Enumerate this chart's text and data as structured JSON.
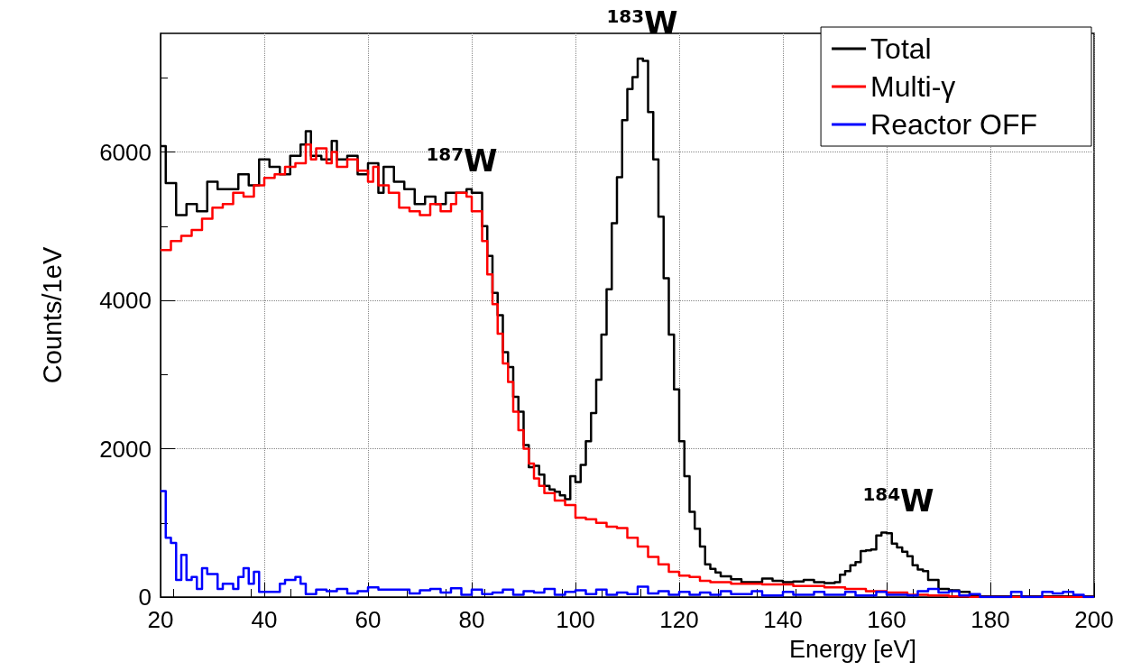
{
  "chart_data": {
    "type": "step",
    "xlabel": "Energy [eV]",
    "ylabel": "Counts/1eV",
    "xlim": [
      20,
      200
    ],
    "xticks": [
      20,
      40,
      60,
      80,
      100,
      120,
      140,
      160,
      180,
      200
    ],
    "ylim": [
      0,
      7600
    ],
    "yticks": [
      0,
      2000,
      4000,
      6000
    ],
    "grid": true,
    "legend": "top right",
    "marker": "none",
    "line_style": "solid",
    "annotations": [
      "$^{183}$W",
      "$^{187}$W",
      "$^{184}$W"
    ],
    "series": [
      {
        "name": "Total",
        "color": "#000000",
        "x": [
          20,
          21,
          23,
          25,
          27,
          29,
          31,
          33,
          35,
          37,
          39,
          41,
          43,
          45,
          47,
          48,
          49,
          51,
          53,
          54,
          56,
          58,
          60,
          62,
          63,
          65,
          67,
          69,
          71,
          73,
          75,
          77,
          79,
          80,
          82,
          83,
          84,
          85,
          86,
          87,
          88,
          89,
          90,
          91,
          92,
          93,
          94,
          95,
          96,
          97,
          98,
          99,
          100,
          101,
          102,
          103,
          104,
          105,
          106,
          107,
          108,
          109,
          110,
          111,
          112,
          113,
          114,
          115,
          116,
          117,
          118,
          119,
          120,
          121,
          122,
          123,
          124,
          125,
          126,
          127,
          128,
          130,
          132,
          134,
          136,
          138,
          140,
          142,
          144,
          146,
          148,
          150,
          151,
          152,
          153,
          154,
          155,
          156,
          157,
          158,
          159,
          160,
          161,
          162,
          163,
          164,
          165,
          166,
          167,
          168,
          169,
          170,
          172,
          174,
          176,
          200
        ],
        "values": [
          6080,
          5580,
          5150,
          5300,
          5200,
          5600,
          5500,
          5500,
          5700,
          5550,
          5900,
          5800,
          5700,
          5950,
          6100,
          6280,
          5950,
          5900,
          6150,
          5900,
          5950,
          5700,
          5850,
          5450,
          5800,
          5600,
          5500,
          5300,
          5400,
          5300,
          5450,
          5450,
          5500,
          5450,
          5000,
          4600,
          4100,
          3800,
          3300,
          3100,
          2700,
          2500,
          2050,
          1750,
          1770,
          1650,
          1500,
          1450,
          1420,
          1370,
          1320,
          1630,
          1550,
          1780,
          2100,
          2480,
          2930,
          3540,
          4150,
          5040,
          5660,
          6430,
          6850,
          7010,
          7260,
          7230,
          6540,
          5900,
          5130,
          4300,
          3540,
          2800,
          2100,
          1630,
          1150,
          920,
          680,
          440,
          380,
          330,
          280,
          240,
          200,
          200,
          250,
          220,
          200,
          210,
          230,
          200,
          190,
          200,
          300,
          350,
          430,
          470,
          620,
          630,
          640,
          830,
          870,
          860,
          720,
          670,
          610,
          550,
          430,
          370,
          350,
          230,
          230,
          110,
          90,
          70,
          10,
          10
        ]
      },
      {
        "name": "Multi-γ",
        "color": "#ff0000",
        "x": [
          20,
          22,
          24,
          26,
          28,
          30,
          32,
          34,
          36,
          38,
          40,
          42,
          44,
          46,
          48,
          49,
          50,
          52,
          53,
          54,
          56,
          58,
          60,
          61,
          62,
          64,
          66,
          68,
          70,
          72,
          74,
          76,
          77,
          79,
          80,
          82,
          83,
          84,
          85,
          86,
          87,
          88,
          89,
          90,
          91,
          92,
          93,
          94,
          96,
          98,
          100,
          102,
          104,
          106,
          108,
          110,
          112,
          114,
          116,
          118,
          120,
          122,
          124,
          126,
          130,
          136,
          142,
          148,
          152,
          156,
          160,
          164,
          168,
          172,
          176,
          200
        ],
        "values": [
          4680,
          4800,
          4870,
          4950,
          5100,
          5250,
          5300,
          5450,
          5400,
          5550,
          5650,
          5700,
          5800,
          5850,
          6100,
          5900,
          6050,
          5850,
          6000,
          5800,
          5900,
          5750,
          5600,
          5800,
          5550,
          5450,
          5250,
          5200,
          5150,
          5300,
          5200,
          5300,
          5450,
          5400,
          5200,
          4800,
          4350,
          3950,
          3550,
          3150,
          2900,
          2500,
          2250,
          2000,
          1800,
          1600,
          1500,
          1400,
          1300,
          1240,
          1070,
          1050,
          1000,
          950,
          930,
          800,
          680,
          540,
          440,
          340,
          290,
          270,
          220,
          200,
          180,
          170,
          150,
          130,
          110,
          80,
          60,
          30,
          20,
          10,
          0,
          0
        ]
      },
      {
        "name": "Reactor OFF",
        "color": "#0000ff",
        "x": [
          20,
          21,
          22,
          23,
          24,
          25,
          26,
          27,
          28,
          29,
          31,
          32,
          34,
          35,
          36,
          37,
          38,
          39,
          43,
          44,
          46,
          47,
          48,
          50,
          52,
          54,
          56,
          58,
          60,
          62,
          66,
          68,
          70,
          72,
          74,
          76,
          78,
          80,
          82,
          84,
          86,
          88,
          90,
          92,
          94,
          96,
          98,
          100,
          102,
          104,
          106,
          108,
          110,
          112,
          114,
          116,
          118,
          120,
          122,
          124,
          126,
          128,
          130,
          134,
          136,
          140,
          142,
          146,
          148,
          152,
          154,
          158,
          160,
          164,
          166,
          168,
          170,
          172,
          174,
          176,
          178,
          184,
          186,
          190,
          192,
          194,
          196,
          198,
          200
        ],
        "values": [
          1430,
          800,
          730,
          230,
          570,
          230,
          270,
          110,
          390,
          310,
          110,
          180,
          110,
          270,
          390,
          180,
          340,
          70,
          180,
          230,
          270,
          180,
          40,
          100,
          80,
          110,
          50,
          80,
          130,
          100,
          100,
          50,
          90,
          110,
          60,
          120,
          30,
          100,
          40,
          60,
          100,
          30,
          80,
          60,
          110,
          30,
          70,
          90,
          40,
          100,
          30,
          60,
          40,
          140,
          50,
          80,
          30,
          70,
          30,
          60,
          30,
          80,
          40,
          80,
          20,
          70,
          30,
          70,
          30,
          70,
          20,
          70,
          30,
          20,
          80,
          110,
          60,
          80,
          20,
          40,
          0,
          70,
          0,
          70,
          50,
          70,
          30,
          0,
          0
        ]
      }
    ]
  }
}
